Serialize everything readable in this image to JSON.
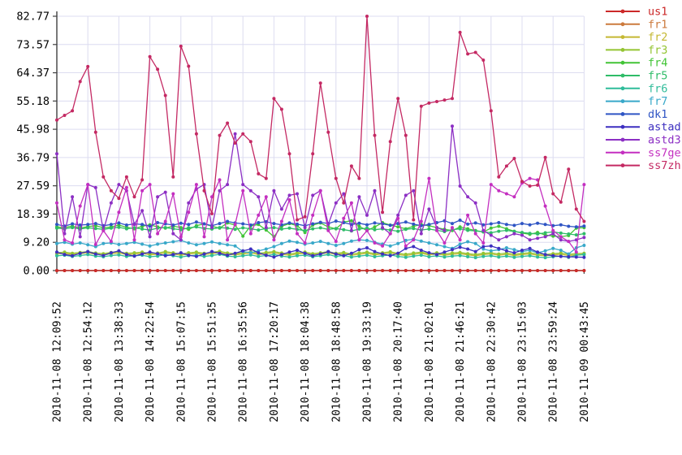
{
  "chart_data": {
    "type": "line",
    "title": "",
    "xlabel": "",
    "ylabel": "",
    "ylim": [
      0,
      82.77
    ],
    "grid": true,
    "legend_position": "right-outside",
    "y_tick_labels": [
      "0.00",
      "9.20",
      "18.39",
      "27.59",
      "36.79",
      "45.98",
      "55.18",
      "64.37",
      "73.57",
      "82.77"
    ],
    "x_tick_labels": [
      "2010-11-08 12:09:52",
      "2010-11-08 12:54:12",
      "2010-11-08 13:38:33",
      "2010-11-08 14:22:54",
      "2010-11-08 15:07:15",
      "2010-11-08 15:51:35",
      "2010-11-08 16:35:56",
      "2010-11-08 17:20:17",
      "2010-11-08 18:04:38",
      "2010-11-08 18:48:58",
      "2010-11-08 19:33:19",
      "2010-11-08 20:17:40",
      "2010-11-08 21:02:01",
      "2010-11-08 21:46:21",
      "2010-11-08 22:30:42",
      "2010-11-08 23:15:03",
      "2010-11-08 23:59:24",
      "2010-11-09 00:43:45"
    ],
    "samples_per_series": 69,
    "samples_per_tick_interval": 4,
    "z_order": [
      "fr1",
      "us1",
      "fr2",
      "fr3",
      "fr4",
      "fr5",
      "fr6",
      "fr7",
      "dk1",
      "astad",
      "astd3",
      "ss7ge",
      "ss7zh"
    ],
    "series": [
      {
        "name": "us1",
        "color": "#cc2929",
        "values": [
          0,
          0,
          0,
          0,
          0,
          0,
          0,
          0,
          0,
          0,
          0,
          0,
          0,
          0,
          0,
          0,
          0,
          0,
          0,
          0,
          0,
          0,
          0,
          0,
          0,
          0,
          0,
          0,
          0,
          0,
          0,
          0,
          0,
          0,
          0,
          0,
          0,
          0,
          0,
          0,
          0,
          0,
          0,
          0,
          0,
          0,
          0,
          0,
          0,
          0,
          0,
          0,
          0,
          0,
          0,
          0,
          0,
          0,
          0,
          0,
          0,
          0,
          0,
          0,
          0,
          0,
          0,
          0,
          0
        ]
      },
      {
        "name": "fr1",
        "color": "#cc7a3d",
        "values": [
          0,
          0,
          0,
          0,
          0,
          0,
          0,
          0,
          0,
          0,
          0,
          0,
          0,
          0,
          0,
          0,
          0,
          0,
          0,
          0,
          0,
          0,
          0,
          0,
          0,
          0,
          0,
          0,
          0,
          0,
          0,
          0,
          0,
          0,
          0,
          0,
          0,
          0,
          0,
          0,
          0,
          0,
          0,
          0,
          0,
          0,
          0,
          0,
          0,
          0,
          0,
          0,
          0,
          0,
          0,
          0,
          0,
          0,
          0,
          0,
          0,
          0,
          0,
          0,
          0,
          0,
          0,
          0,
          0
        ]
      },
      {
        "name": "fr2",
        "color": "#c4b832",
        "values": [
          5.4,
          5.6,
          5.2,
          5.5,
          5.8,
          5.3,
          5.1,
          5.5,
          5.7,
          5.2,
          5.4,
          5.6,
          5.1,
          5.3,
          5.8,
          5.4,
          5.0,
          5.4,
          5.6,
          5.2,
          5.5,
          5.9,
          5.3,
          5.1,
          5.4,
          5.7,
          5.2,
          5.5,
          5.8,
          5.3,
          5.0,
          5.4,
          5.6,
          5.1,
          5.4,
          5.8,
          5.2,
          5.5,
          5.0,
          5.3,
          5.6,
          5.1,
          5.4,
          5.7,
          5.2,
          4.9,
          5.3,
          5.6,
          5.1,
          5.4,
          5.0,
          5.3,
          5.5,
          5.1,
          4.8,
          5.2,
          5.4,
          5.0,
          5.3,
          4.9,
          5.2,
          5.4,
          5.0,
          4.8,
          5.1,
          5.3,
          4.9,
          5.1,
          5.2
        ]
      },
      {
        "name": "fr3",
        "color": "#94c432",
        "values": [
          5.8,
          6.0,
          5.6,
          5.9,
          6.2,
          5.7,
          5.5,
          5.9,
          6.1,
          5.6,
          5.8,
          6.0,
          5.5,
          5.7,
          6.2,
          5.8,
          5.4,
          5.8,
          6.0,
          5.6,
          5.9,
          6.3,
          5.7,
          5.5,
          5.8,
          6.1,
          5.6,
          5.9,
          6.2,
          5.7,
          5.4,
          5.8,
          6.0,
          5.5,
          5.8,
          6.2,
          5.6,
          5.9,
          5.4,
          5.7,
          6.0,
          5.5,
          5.8,
          6.1,
          5.6,
          5.3,
          5.7,
          6.0,
          5.5,
          5.8,
          5.4,
          5.7,
          5.9,
          5.5,
          5.2,
          5.6,
          5.8,
          5.4,
          5.7,
          5.3,
          5.6,
          5.8,
          5.4,
          5.2,
          5.5,
          5.7,
          5.3,
          5.5,
          5.6
        ]
      },
      {
        "name": "fr4",
        "color": "#42c436",
        "values": [
          14.2,
          14.0,
          14.5,
          13.8,
          14.3,
          14.6,
          13.9,
          14.2,
          14.8,
          14.1,
          13.6,
          14.4,
          14.9,
          14.2,
          13.8,
          14.5,
          14.0,
          13.4,
          14.6,
          15.2,
          14.4,
          13.8,
          15.5,
          14.8,
          11.2,
          14.6,
          15.0,
          13.2,
          11.0,
          14.4,
          15.3,
          14.6,
          12.4,
          14.8,
          15.5,
          14.2,
          13.6,
          15.8,
          16.2,
          14.4,
          13.0,
          14.2,
          15.6,
          14.8,
          14.2,
          13.6,
          14.4,
          15.0,
          14.6,
          14.0,
          13.4,
          13.0,
          14.2,
          13.6,
          13.0,
          12.6,
          13.8,
          14.4,
          13.6,
          12.8,
          12.2,
          11.8,
          12.4,
          11.6,
          11.2,
          11.0,
          11.4,
          13.8,
          14.0
        ]
      },
      {
        "name": "fr5",
        "color": "#2fbc68",
        "values": [
          13.8,
          13.6,
          14.0,
          13.5,
          13.9,
          13.7,
          13.4,
          13.8,
          14.1,
          13.6,
          13.9,
          13.5,
          13.2,
          13.8,
          14.0,
          13.6,
          13.3,
          13.9,
          14.2,
          13.7,
          13.5,
          14.0,
          13.8,
          13.4,
          13.9,
          13.6,
          13.2,
          13.7,
          14.0,
          13.5,
          13.8,
          13.4,
          13.0,
          13.6,
          13.9,
          13.4,
          13.7,
          13.3,
          12.9,
          13.5,
          13.8,
          13.3,
          13.6,
          13.2,
          12.8,
          13.4,
          13.7,
          13.2,
          13.5,
          13.1,
          12.7,
          13.3,
          13.6,
          13.1,
          12.9,
          12.6,
          12.3,
          12.8,
          13.1,
          12.7,
          12.4,
          12.1,
          11.9,
          12.3,
          12.6,
          12.2,
          11.9,
          11.6,
          12.0
        ]
      },
      {
        "name": "fr6",
        "color": "#2fbc9a",
        "values": [
          4.8,
          5.0,
          4.6,
          4.9,
          5.2,
          4.7,
          4.5,
          4.9,
          5.1,
          4.6,
          4.8,
          5.0,
          4.5,
          4.7,
          5.2,
          4.8,
          4.4,
          4.8,
          5.0,
          4.6,
          4.9,
          5.3,
          4.7,
          4.5,
          4.8,
          5.1,
          4.6,
          4.9,
          5.2,
          4.7,
          4.4,
          4.8,
          5.0,
          4.5,
          4.8,
          5.2,
          4.6,
          4.9,
          4.4,
          4.7,
          5.0,
          4.5,
          4.8,
          5.1,
          4.6,
          4.3,
          4.7,
          5.0,
          4.5,
          4.8,
          4.4,
          4.7,
          4.9,
          4.5,
          4.2,
          4.6,
          4.8,
          4.4,
          4.7,
          4.3,
          4.6,
          4.8,
          4.4,
          4.2,
          4.5,
          4.7,
          4.3,
          5.0,
          5.2
        ]
      },
      {
        "name": "fr7",
        "color": "#38a8c9",
        "values": [
          8.8,
          9.2,
          8.6,
          9.0,
          8.4,
          7.8,
          8.8,
          9.0,
          8.5,
          8.8,
          9.2,
          8.6,
          8.0,
          8.6,
          9.0,
          9.4,
          9.8,
          9.0,
          8.4,
          8.8,
          9.3,
          8.8,
          8.4,
          8.0,
          6.2,
          5.8,
          6.4,
          7.0,
          7.8,
          8.8,
          9.6,
          9.2,
          8.6,
          9.0,
          9.5,
          8.8,
          8.2,
          8.8,
          9.6,
          10.0,
          9.8,
          9.2,
          8.6,
          8.0,
          8.8,
          9.8,
          10.2,
          9.6,
          9.0,
          8.4,
          7.8,
          7.2,
          8.6,
          9.4,
          8.8,
          7.0,
          6.4,
          6.8,
          7.4,
          6.8,
          6.2,
          6.6,
          5.8,
          6.4,
          7.2,
          6.6,
          5.4,
          7.4,
          8.2
        ]
      },
      {
        "name": "dk1",
        "color": "#2f55c4",
        "values": [
          15,
          14.5,
          15.2,
          14.8,
          15,
          15.3,
          14.6,
          15,
          15.5,
          14.8,
          15.2,
          15,
          14.4,
          15.6,
          15.2,
          14.8,
          15.4,
          15,
          15.8,
          15.2,
          14.6,
          15.3,
          16,
          15.5,
          15.2,
          14.8,
          15.6,
          15.9,
          15.3,
          14.9,
          15.5,
          15.1,
          14.6,
          15.2,
          15.7,
          15.3,
          16.1,
          15.6,
          15.0,
          15.4,
          14.9,
          15.5,
          15.2,
          14.7,
          15.3,
          15.8,
          15.1,
          14.6,
          15.0,
          15.6,
          16.2,
          15.3,
          16.4,
          15.1,
          15.5,
          14.9,
          15.2,
          15.6,
          15.0,
          14.7,
          15.3,
          14.9,
          15.4,
          15.0,
          14.6,
          14.9,
          14.4,
          14.2,
          14.5
        ]
      },
      {
        "name": "astad",
        "color": "#3d2fc0",
        "values": [
          6.0,
          5.2,
          4.8,
          5.6,
          6.2,
          5.4,
          4.9,
          5.8,
          6.4,
          5.2,
          4.7,
          5.4,
          6.0,
          5.5,
          4.8,
          5.2,
          5.8,
          5.0,
          4.6,
          5.4,
          6.2,
          5.6,
          5.0,
          5.6,
          6.4,
          7.0,
          5.8,
          5.0,
          4.4,
          5.2,
          6.0,
          6.6,
          5.6,
          4.8,
          5.4,
          6.2,
          5.4,
          4.8,
          5.6,
          6.8,
          7.4,
          6.2,
          5.4,
          4.8,
          5.6,
          7.2,
          7.8,
          6.6,
          5.8,
          5.2,
          6.0,
          6.8,
          7.6,
          7.0,
          6.2,
          7.8,
          8.0,
          7.2,
          6.4,
          5.8,
          6.6,
          7.2,
          6.0,
          5.2,
          4.8,
          4.6,
          4.5,
          4.4,
          4.3
        ]
      },
      {
        "name": "astd3",
        "color": "#8c2fc4",
        "values": [
          38,
          12,
          24,
          11,
          28,
          27,
          13,
          22,
          28,
          26,
          15,
          19.5,
          11,
          24,
          25.5,
          12,
          10,
          22,
          26.5,
          28,
          14,
          26,
          28,
          44.5,
          28,
          26,
          24,
          14,
          26,
          20,
          24.5,
          25,
          14,
          24.5,
          26,
          15,
          22,
          25,
          13,
          24,
          18,
          26,
          14,
          12,
          18,
          24.5,
          26,
          12,
          20,
          14,
          13,
          47,
          27.5,
          24,
          22,
          13,
          11.5,
          10,
          11,
          12,
          11.5,
          10,
          10.5,
          11,
          12,
          10,
          9.5,
          10,
          10.8
        ]
      },
      {
        "name": "ss7ge",
        "color": "#c42fc0",
        "values": [
          22,
          10,
          9,
          21,
          28,
          8.5,
          13,
          9.5,
          19,
          27,
          10,
          26,
          28,
          12,
          16,
          25,
          11,
          19,
          28,
          11,
          24,
          29.5,
          10,
          15,
          26,
          12,
          18,
          24,
          10,
          16,
          23,
          12,
          9,
          18,
          26,
          13,
          9.5,
          17,
          22,
          10,
          13,
          9,
          8,
          12,
          17,
          8,
          10,
          16,
          30,
          13,
          9,
          14,
          10,
          18,
          12,
          9,
          28,
          26,
          25,
          24,
          28.5,
          30,
          29.5,
          21,
          13,
          11,
          9.5,
          6,
          28
        ]
      },
      {
        "name": "ss7zh",
        "color": "#c42963",
        "values": [
          49,
          50.5,
          52,
          61.5,
          66.4,
          45,
          30.5,
          26,
          23.5,
          30.5,
          24,
          29.5,
          69.6,
          65.5,
          57,
          30.5,
          73,
          66.5,
          44.5,
          26,
          18.5,
          44,
          48,
          41.5,
          44.5,
          42,
          31.5,
          30,
          56,
          52.5,
          38,
          16.5,
          17.5,
          38,
          61,
          45,
          30,
          22,
          34,
          30,
          82.77,
          44,
          19,
          42,
          56,
          44,
          16.5,
          53.5,
          54.5,
          55,
          55.5,
          56,
          77.5,
          70.5,
          71,
          68.5,
          52,
          30.5,
          34,
          36.5,
          29,
          27.5,
          27.8,
          36.8,
          25,
          22.3,
          33,
          20,
          16
        ]
      }
    ]
  },
  "colors": {
    "background": "#ffffff",
    "grid": "#dcdcf0",
    "axis": "#404040",
    "tick_text": "#000000"
  }
}
